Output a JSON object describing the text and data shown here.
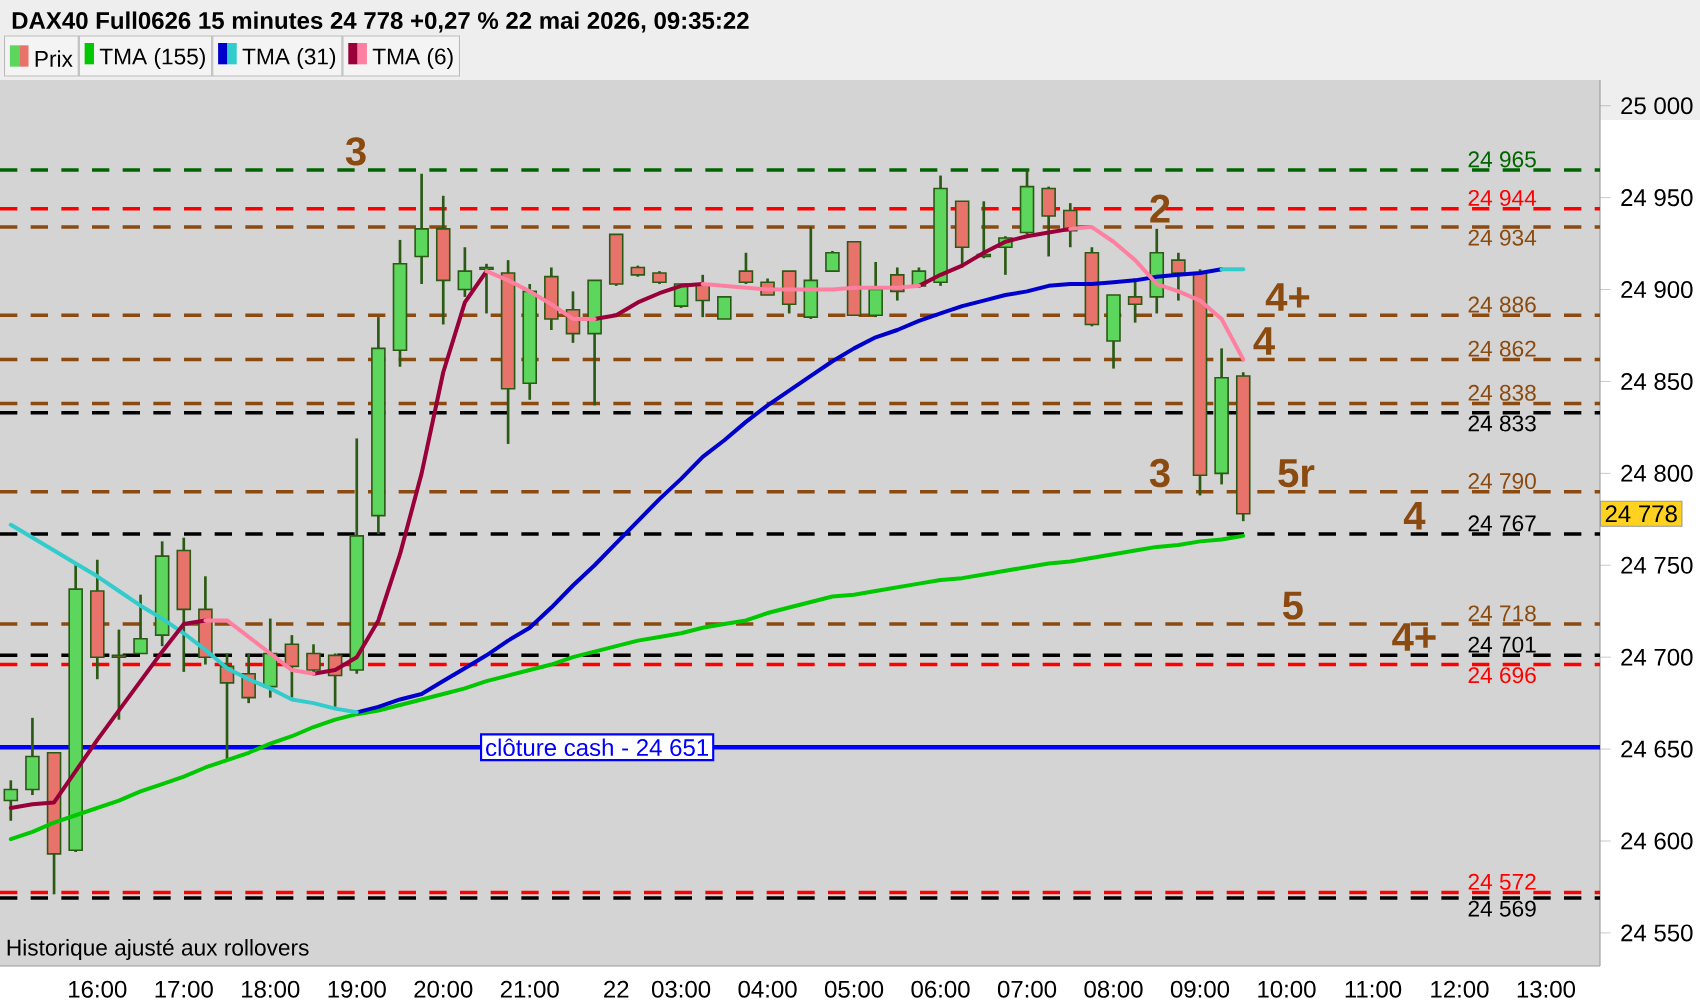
{
  "chart_data": {
    "type": "candlestick",
    "title": "DAX40 Full0626 15 minutes 24 778 +0,27 % 22 mai 2026, 09:35:22",
    "categories": [
      null,
      null,
      null,
      null,
      "16:00",
      null,
      null,
      null,
      "17:00",
      null,
      null,
      null,
      "18:00",
      null,
      null,
      null,
      "19:00",
      null,
      null,
      null,
      "20:00",
      null,
      null,
      null,
      "21:00",
      null,
      null,
      null,
      "22",
      null,
      null,
      "03:00",
      null,
      null,
      null,
      "04:00",
      null,
      null,
      null,
      "05:00",
      null,
      null,
      null,
      "06:00",
      null,
      null,
      null,
      "07:00",
      null,
      null,
      null,
      "08:00",
      null,
      null,
      null,
      "09:00",
      null,
      null,
      null,
      "10:00",
      null,
      null,
      null,
      "11:00",
      null,
      null,
      null,
      "12:00",
      null,
      null,
      null,
      "13:00",
      null,
      null
    ],
    "ylim": [
      24532,
      25014
    ],
    "yticks": [
      {
        "value": 24550,
        "label": "24 550"
      },
      {
        "value": 24600,
        "label": "24 600"
      },
      {
        "value": 24650,
        "label": "24 650"
      },
      {
        "value": 24700,
        "label": "24 700"
      },
      {
        "value": 24750,
        "label": "24 750"
      },
      {
        "value": 24800,
        "label": "24 800"
      },
      {
        "value": 24850,
        "label": "24 850"
      },
      {
        "value": 24900,
        "label": "24 900"
      },
      {
        "value": 24950,
        "label": "24 950"
      },
      {
        "value": 25000,
        "label": "25 000"
      }
    ],
    "legend": "top left",
    "series": [
      {
        "name": "Prix",
        "ohlc": [
          [
            24622,
            24633,
            24611,
            24628
          ],
          [
            24628,
            24667,
            24625,
            24646
          ],
          [
            24648,
            24648,
            24571,
            24593
          ],
          [
            24595,
            24750,
            24594,
            24737
          ],
          [
            24736,
            24753,
            24688,
            24700
          ],
          [
            24701,
            24715,
            24666,
            24700
          ],
          [
            24702,
            24734,
            24702,
            24710
          ],
          [
            24712,
            24763,
            24706,
            24755
          ],
          [
            24758,
            24765,
            24692,
            24726
          ],
          [
            24726,
            24744,
            24696,
            24700
          ],
          [
            24695,
            24702,
            24644,
            24686
          ],
          [
            24691,
            24702,
            24675,
            24678
          ],
          [
            24684,
            24721,
            24678,
            24702
          ],
          [
            24707,
            24712,
            24678,
            24695
          ],
          [
            24702,
            24707,
            24691,
            24693
          ],
          [
            24701,
            24702,
            24673,
            24690
          ],
          [
            24693,
            24819,
            24691,
            24766
          ],
          [
            24777,
            24885,
            24767,
            24868
          ],
          [
            24867,
            24927,
            24858,
            24914
          ],
          [
            24918,
            24963,
            24903,
            24933
          ],
          [
            24933,
            24951,
            24881,
            24905
          ],
          [
            24900,
            24923,
            24896,
            24910
          ],
          [
            24911,
            24914,
            24887,
            24912
          ],
          [
            24909,
            24916,
            24816,
            24846
          ],
          [
            24849,
            24903,
            24840,
            24899
          ],
          [
            24907,
            24912,
            24878,
            24884
          ],
          [
            24889,
            24899,
            24871,
            24876
          ],
          [
            24876,
            24905,
            24837,
            24905
          ],
          [
            24930,
            24930,
            24902,
            24903
          ],
          [
            24912,
            24913,
            24907,
            24908
          ],
          [
            24909,
            24910,
            24903,
            24904
          ],
          [
            24891,
            24903,
            24890,
            24903
          ],
          [
            24903,
            24908,
            24885,
            24894
          ],
          [
            24884,
            24896,
            24884,
            24896
          ],
          [
            24910,
            24920,
            24903,
            24904
          ],
          [
            24904,
            24906,
            24897,
            24897
          ],
          [
            24910,
            24910,
            24887,
            24892
          ],
          [
            24885,
            24934,
            24884,
            24905
          ],
          [
            24910,
            24921,
            24910,
            24920
          ],
          [
            24926,
            24926,
            24886,
            24886
          ],
          [
            24886,
            24915,
            24885,
            24900
          ],
          [
            24908,
            24912,
            24894,
            24899
          ],
          [
            24902,
            24912,
            24902,
            24910
          ],
          [
            24904,
            24962,
            24902,
            24955
          ],
          [
            24948,
            24948,
            24912,
            24923
          ],
          [
            24919,
            24948,
            24917,
            24918
          ],
          [
            24923,
            24929,
            24908,
            24928
          ],
          [
            24931,
            24965,
            24930,
            24956
          ],
          [
            24955,
            24956,
            24918,
            24940
          ],
          [
            24943,
            24947,
            24923,
            24932
          ],
          [
            24920,
            24923,
            24880,
            24881
          ],
          [
            24872,
            24897,
            24857,
            24897
          ],
          [
            24896,
            24906,
            24882,
            24892
          ],
          [
            24896,
            24933,
            24887,
            24920
          ],
          [
            24916,
            24920,
            24894,
            24909
          ],
          [
            24909,
            24911,
            24788,
            24799
          ],
          [
            24800,
            24868,
            24794,
            24852
          ],
          [
            24853,
            24855,
            24774,
            24778
          ],
          null,
          null,
          null,
          null,
          null,
          null,
          null,
          null,
          null,
          null,
          null,
          null,
          null,
          null,
          null,
          null
        ],
        "colors": [
          "#5cd65c",
          "#5cd65c",
          "#e8736b",
          "#5cd65c",
          "#e8736b",
          "#e8736b",
          "#5cd65c",
          "#5cd65c",
          "#e8736b",
          "#e8736b",
          "#e8736b",
          "#e8736b",
          "#5cd65c",
          "#e8736b",
          "#e8736b",
          "#e8736b",
          "#5cd65c",
          "#5cd65c",
          "#5cd65c",
          "#5cd65c",
          "#e8736b",
          "#5cd65c",
          "#5cd65c",
          "#e8736b",
          "#5cd65c",
          "#e8736b",
          "#e8736b",
          "#5cd65c",
          "#e8736b",
          "#e8736b",
          "#e8736b",
          "#5cd65c",
          "#e8736b",
          "#5cd65c",
          "#e8736b",
          "#e8736b",
          "#e8736b",
          "#5cd65c",
          "#5cd65c",
          "#e8736b",
          "#5cd65c",
          "#e8736b",
          "#5cd65c",
          "#5cd65c",
          "#e8736b",
          "#e8736b",
          "#5cd65c",
          "#5cd65c",
          "#e8736b",
          "#e8736b",
          "#e8736b",
          "#5cd65c",
          "#e8736b",
          "#5cd65c",
          "#e8736b",
          "#e8736b",
          "#5cd65c",
          "#e8736b",
          null,
          null,
          null,
          null,
          null,
          null,
          null,
          null,
          null,
          null,
          null,
          null,
          null,
          null,
          null,
          null
        ]
      },
      {
        "type": "line",
        "name": "TMA (155)",
        "color": "#00c800",
        "values": [
          24601,
          24605,
          24610,
          24614,
          24618,
          24622,
          24627,
          24631,
          24635,
          24640,
          24644,
          24648,
          24653,
          24657,
          24662,
          24666,
          24669,
          24671,
          24674,
          24677,
          24680,
          24683,
          24687,
          24690,
          24693,
          24696,
          24700,
          24703,
          24706,
          24709,
          24711,
          24713,
          24716,
          24718,
          24720,
          24724,
          24727,
          24730,
          24733,
          24734,
          24736,
          24738,
          24740,
          24742,
          24743,
          24745,
          24747,
          24749,
          24751,
          24752,
          24754,
          24756,
          24758,
          24760,
          24761,
          24763,
          24764,
          24766,
          null,
          null,
          null,
          null,
          null,
          null,
          null,
          null,
          null,
          null,
          null,
          null,
          null,
          null,
          null,
          null
        ]
      },
      {
        "type": "line",
        "name": "TMA (31)",
        "color": "#0000cc",
        "values": [
          null,
          null,
          null,
          null,
          null,
          null,
          null,
          null,
          null,
          null,
          null,
          null,
          null,
          null,
          null,
          null,
          24670,
          24673,
          24677,
          24680,
          24687,
          24694,
          24701,
          24709,
          24716,
          24727,
          24739,
          24750,
          24762,
          24774,
          24786,
          24797,
          24809,
          24818,
          24828,
          24837,
          24845,
          24853,
          24861,
          24868,
          24874,
          24878,
          24883,
          24887,
          24891,
          24894,
          24897,
          24899,
          24902,
          24903,
          24903,
          24904,
          24905,
          24907,
          24908,
          24909,
          24911,
          null,
          null,
          null,
          null,
          null,
          null,
          null,
          null,
          null,
          null,
          null,
          null,
          null,
          null,
          null,
          null,
          null
        ]
      },
      {
        "type": "line",
        "color": "#33cccc",
        "values": [
          24772,
          24765,
          24758,
          24751,
          24744,
          24736,
          24728,
          24721,
          24713,
          24704,
          24694,
          24688,
          24683,
          24677,
          24675,
          24672,
          24670,
          null,
          null,
          null,
          null,
          null,
          null,
          null,
          null,
          null,
          null,
          null,
          null,
          null,
          null,
          null,
          null,
          null,
          null,
          null,
          null,
          null,
          null,
          null,
          null,
          null,
          null,
          null,
          null,
          null,
          null,
          null,
          null,
          null,
          null,
          null,
          null,
          null,
          null,
          null,
          null,
          null,
          null,
          null,
          null,
          null,
          null,
          null,
          null,
          null,
          null,
          null,
          null,
          null,
          null,
          null,
          null,
          null
        ]
      },
      {
        "type": "line",
        "color": "#33cccc",
        "values": [
          null,
          null,
          null,
          null,
          null,
          null,
          null,
          null,
          null,
          null,
          null,
          null,
          null,
          null,
          null,
          null,
          null,
          null,
          null,
          null,
          null,
          null,
          null,
          null,
          null,
          null,
          null,
          null,
          null,
          null,
          null,
          null,
          null,
          null,
          null,
          null,
          null,
          null,
          null,
          null,
          null,
          null,
          null,
          null,
          null,
          null,
          null,
          null,
          null,
          null,
          null,
          null,
          null,
          null,
          null,
          null,
          24911,
          24911,
          null,
          null,
          null,
          null,
          null,
          null,
          null,
          null,
          null,
          null,
          null,
          null,
          null,
          null,
          null,
          null
        ]
      },
      {
        "type": "line",
        "name": "TMA (6)",
        "color": "#99003a",
        "values": [
          24618,
          24620,
          24621,
          24638,
          24655,
          24671,
          24687,
          24703,
          24718,
          24720,
          null,
          null,
          null,
          null,
          null,
          null,
          null,
          null,
          null,
          null,
          null,
          null,
          null,
          null,
          null,
          null,
          null,
          null,
          null,
          null,
          null,
          null,
          null,
          null,
          null,
          null,
          null,
          null,
          null,
          null,
          null,
          null,
          null,
          null,
          null,
          null,
          null,
          null,
          null,
          null,
          null,
          null,
          null,
          null,
          null,
          null,
          null,
          null,
          null,
          null,
          null,
          null,
          null,
          null,
          null,
          null,
          null,
          null,
          null,
          null,
          null,
          null,
          null,
          null
        ]
      },
      {
        "type": "line",
        "color": "#99003a",
        "values": [
          null,
          null,
          null,
          null,
          null,
          null,
          null,
          null,
          null,
          null,
          null,
          null,
          null,
          null,
          24691,
          24693,
          24700,
          24720,
          24756,
          24800,
          24855,
          24893,
          24910,
          null,
          null,
          null,
          null,
          null,
          null,
          null,
          null,
          null,
          null,
          null,
          null,
          null,
          null,
          null,
          null,
          null,
          null,
          null,
          null,
          null,
          null,
          null,
          null,
          null,
          null,
          null,
          null,
          null,
          null,
          null,
          null,
          null,
          null,
          null,
          null,
          null,
          null,
          null,
          null,
          null,
          null,
          null,
          null,
          null,
          null,
          null,
          null,
          null,
          null,
          null
        ]
      },
      {
        "type": "line",
        "color": "#99003a",
        "values": [
          null,
          null,
          null,
          null,
          null,
          null,
          null,
          null,
          null,
          null,
          null,
          null,
          null,
          null,
          null,
          null,
          null,
          null,
          null,
          null,
          null,
          null,
          null,
          null,
          null,
          null,
          null,
          24884,
          24886,
          24893,
          24898,
          24902,
          24903,
          null,
          null,
          null,
          null,
          null,
          null,
          null,
          null,
          null,
          null,
          null,
          null,
          null,
          null,
          null,
          null,
          null,
          null,
          null,
          null,
          null,
          null,
          null,
          null,
          null,
          null,
          null,
          null,
          null,
          null,
          null,
          null,
          null,
          null,
          null,
          null,
          null,
          null,
          null,
          null,
          null
        ]
      },
      {
        "type": "line",
        "color": "#99003a",
        "values": [
          null,
          null,
          null,
          null,
          null,
          null,
          null,
          null,
          null,
          null,
          null,
          null,
          null,
          null,
          null,
          null,
          null,
          null,
          null,
          null,
          null,
          null,
          null,
          null,
          null,
          null,
          null,
          null,
          null,
          null,
          null,
          null,
          null,
          null,
          null,
          null,
          null,
          null,
          null,
          null,
          null,
          null,
          24902,
          24908,
          24913,
          24920,
          24926,
          24929,
          24931,
          24933,
          null,
          null,
          null,
          null,
          null,
          null,
          null,
          null,
          null,
          null,
          null,
          null,
          null,
          null,
          null,
          null,
          null,
          null,
          null,
          null,
          null,
          null,
          null,
          null
        ]
      },
      {
        "type": "line",
        "color": "#ff7fa0",
        "values": [
          null,
          null,
          null,
          null,
          null,
          null,
          null,
          null,
          null,
          24720,
          24720,
          24711,
          24702,
          24693,
          24691,
          null,
          null,
          null,
          null,
          null,
          null,
          null,
          null,
          null,
          null,
          null,
          null,
          null,
          null,
          null,
          null,
          null,
          null,
          null,
          null,
          null,
          null,
          null,
          null,
          null,
          null,
          null,
          null,
          null,
          null,
          null,
          null,
          null,
          null,
          null,
          null,
          null,
          null,
          null,
          null,
          null,
          null,
          null,
          null,
          null,
          null,
          null,
          null,
          null,
          null,
          null,
          null,
          null,
          null,
          null,
          null,
          null,
          null,
          null
        ]
      },
      {
        "type": "line",
        "color": "#ff7fa0",
        "values": [
          null,
          null,
          null,
          null,
          null,
          null,
          null,
          null,
          null,
          null,
          null,
          null,
          null,
          null,
          null,
          null,
          null,
          null,
          null,
          null,
          null,
          null,
          24910,
          24905,
          24899,
          24892,
          24884,
          24884,
          null,
          null,
          null,
          null,
          null,
          null,
          null,
          null,
          null,
          null,
          null,
          null,
          null,
          null,
          null,
          null,
          null,
          null,
          null,
          null,
          null,
          null,
          null,
          null,
          null,
          null,
          null,
          null,
          null,
          null,
          null,
          null,
          null,
          null,
          null,
          null,
          null,
          null,
          null,
          null,
          null,
          null,
          null,
          null,
          null,
          null
        ]
      },
      {
        "type": "line",
        "color": "#ff7fa0",
        "values": [
          null,
          null,
          null,
          null,
          null,
          null,
          null,
          null,
          null,
          null,
          null,
          null,
          null,
          null,
          null,
          null,
          null,
          null,
          null,
          null,
          null,
          null,
          null,
          null,
          null,
          null,
          null,
          null,
          null,
          null,
          null,
          null,
          24903,
          24902,
          24901,
          24900,
          24900,
          24900,
          24900,
          24901,
          24901,
          24901,
          24902,
          null,
          null,
          null,
          null,
          null,
          null,
          null,
          null,
          null,
          null,
          null,
          null,
          null,
          null,
          null,
          null,
          null,
          null,
          null,
          null,
          null,
          null,
          null,
          null,
          null,
          null,
          null,
          null,
          null,
          null,
          null
        ]
      },
      {
        "type": "line",
        "color": "#ff7fa0",
        "values": [
          null,
          null,
          null,
          null,
          null,
          null,
          null,
          null,
          null,
          null,
          null,
          null,
          null,
          null,
          null,
          null,
          null,
          null,
          null,
          null,
          null,
          null,
          null,
          null,
          null,
          null,
          null,
          null,
          null,
          null,
          null,
          null,
          null,
          null,
          null,
          null,
          null,
          null,
          null,
          null,
          null,
          null,
          null,
          null,
          null,
          null,
          null,
          null,
          null,
          24933,
          24934,
          24926,
          24916,
          24903,
          24899,
          24894,
          24884,
          24862,
          null,
          null,
          null,
          null,
          null,
          null,
          null,
          null,
          null,
          null,
          null,
          null,
          null,
          null,
          null,
          null
        ]
      }
    ],
    "ref_lines": [
      {
        "axis": "y",
        "value": 24965,
        "label": "24 965",
        "color": "#006400",
        "line_style": "dashed"
      },
      {
        "axis": "y",
        "value": 24944,
        "label": "24 944",
        "color": "#ff0000",
        "line_style": "dashed"
      },
      {
        "axis": "y",
        "value": 24934,
        "label": "24 934",
        "color": "#8b4a0f",
        "line_style": "dashed"
      },
      {
        "axis": "y",
        "value": 24886,
        "label": "24 886",
        "color": "#8b4a0f",
        "line_style": "dashed"
      },
      {
        "axis": "y",
        "value": 24862,
        "label": "24 862",
        "color": "#8b4a0f",
        "line_style": "dashed"
      },
      {
        "axis": "y",
        "value": 24838,
        "label": "24 838",
        "color": "#8b4a0f",
        "line_style": "dashed"
      },
      {
        "axis": "y",
        "value": 24833,
        "label": "24 833",
        "color": "#000000",
        "line_style": "dashed"
      },
      {
        "axis": "y",
        "value": 24790,
        "label": "24 790",
        "color": "#8b4a0f",
        "line_style": "dashed"
      },
      {
        "axis": "y",
        "value": 24767,
        "label": "24 767",
        "color": "#000000",
        "line_style": "dashed"
      },
      {
        "axis": "y",
        "value": 24718,
        "label": "24 718",
        "color": "#8b4a0f",
        "line_style": "dashed"
      },
      {
        "axis": "y",
        "value": 24701,
        "label": "24 701",
        "color": "#000000",
        "line_style": "dashed"
      },
      {
        "axis": "y",
        "value": 24696,
        "label": "24 696",
        "color": "#ff0000",
        "line_style": "dashed"
      },
      {
        "axis": "y",
        "value": 24651,
        "label": "clôture cash -  24 651",
        "color": "#0000ff",
        "line_style": "solid"
      },
      {
        "axis": "y",
        "value": 24572,
        "label": "24 572",
        "color": "#ff0000",
        "line_style": "dashed"
      },
      {
        "axis": "y",
        "value": 24569,
        "label": "24 569",
        "color": "#000000",
        "line_style": "dashed"
      }
    ],
    "annotations": [
      {
        "text": "3",
        "y": 24965
      },
      {
        "text": "2",
        "y": 24934
      },
      {
        "text": "4+",
        "y": 24886
      },
      {
        "text": "4",
        "y": 24862
      },
      {
        "text": "3",
        "y": 24790
      },
      {
        "text": "5r",
        "y": 24790
      },
      {
        "text": "4",
        "y": 24767
      },
      {
        "text": "5",
        "y": 24718
      },
      {
        "text": "4+",
        "y": 24701
      },
      {
        "text": "24 778",
        "y": 24778
      },
      "Historique ajusté aux rollovers"
    ]
  }
}
